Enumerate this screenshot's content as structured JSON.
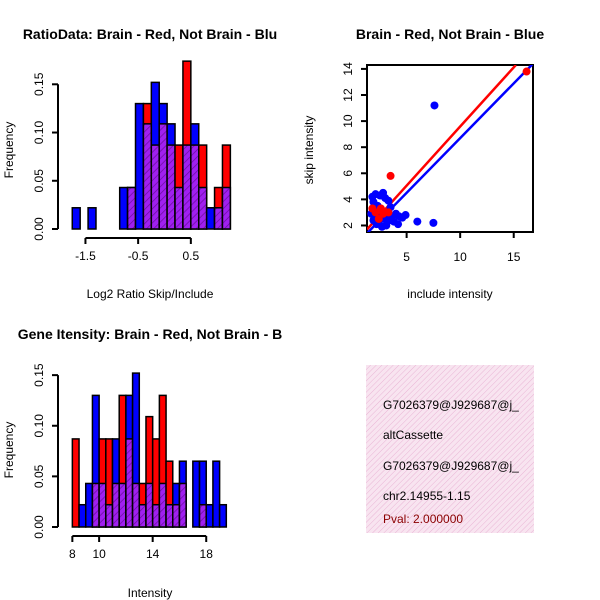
{
  "colors": {
    "red": "#ff0000",
    "blue": "#0000ff",
    "overlap": "#a020f0",
    "info_bg": "#f6dbec",
    "pval": "#8b0000"
  },
  "chart_data": [
    {
      "id": "ratio",
      "type": "bar",
      "title": "RatioData: Brain - Red, Not Brain - Blu",
      "xlabel": "Log2 Ratio Skip/Include",
      "ylabel": "Frequency",
      "xlim": [
        -1.85,
        1.3
      ],
      "ylim": [
        0,
        0.17
      ],
      "xticks": [
        -1.5,
        -0.5,
        0.5
      ],
      "xtick_labels": [
        "-1.5",
        "-0.5",
        "0.5"
      ],
      "yticks": [
        0,
        0.05,
        0.1,
        0.15
      ],
      "ytick_labels": [
        "0.00",
        "0.05",
        "0.10",
        "0.15"
      ],
      "bins": [
        {
          "x0": -1.75,
          "x1": -1.6,
          "blue": 0.022,
          "red": 0.0
        },
        {
          "x0": -1.45,
          "x1": -1.3,
          "blue": 0.022,
          "red": 0.0
        },
        {
          "x0": -0.85,
          "x1": -0.7,
          "blue": 0.043,
          "red": 0.0
        },
        {
          "x0": -0.7,
          "x1": -0.55,
          "blue": 0.043,
          "red": 0.043
        },
        {
          "x0": -0.55,
          "x1": -0.4,
          "blue": 0.13,
          "red": 0.0
        },
        {
          "x0": -0.4,
          "x1": -0.25,
          "blue": 0.109,
          "red": 0.13
        },
        {
          "x0": -0.25,
          "x1": -0.1,
          "blue": 0.152,
          "red": 0.087
        },
        {
          "x0": -0.1,
          "x1": 0.05,
          "blue": 0.13,
          "red": 0.109
        },
        {
          "x0": 0.05,
          "x1": 0.2,
          "blue": 0.109,
          "red": 0.087
        },
        {
          "x0": 0.2,
          "x1": 0.35,
          "blue": 0.043,
          "red": 0.087
        },
        {
          "x0": 0.35,
          "x1": 0.5,
          "blue": 0.087,
          "red": 0.174
        },
        {
          "x0": 0.5,
          "x1": 0.65,
          "blue": 0.109,
          "red": 0.087
        },
        {
          "x0": 0.65,
          "x1": 0.8,
          "blue": 0.043,
          "red": 0.087
        },
        {
          "x0": 0.8,
          "x1": 0.95,
          "blue": 0.022,
          "red": 0.0
        },
        {
          "x0": 0.95,
          "x1": 1.1,
          "blue": 0.022,
          "red": 0.043
        },
        {
          "x0": 1.1,
          "x1": 1.25,
          "blue": 0.043,
          "red": 0.087
        }
      ]
    },
    {
      "id": "scatter",
      "type": "scatter",
      "title": "Brain - Red, Not Brain - Blue",
      "xlabel": "include intensity",
      "ylabel": "skip intensity",
      "xlim": [
        1.3,
        16.8
      ],
      "ylim": [
        1.5,
        14.3
      ],
      "xticks": [
        5,
        10,
        15
      ],
      "xtick_labels": [
        "5",
        "10",
        "15"
      ],
      "yticks": [
        2,
        4,
        6,
        8,
        10,
        12,
        14
      ],
      "ytick_labels": [
        "2",
        "4",
        "6",
        "8",
        "10",
        "12",
        "14"
      ],
      "series": [
        {
          "name": "Not Brain",
          "color": "blue",
          "points": [
            [
              1.8,
              4.2
            ],
            [
              2.1,
              4.4
            ],
            [
              2.5,
              4.3
            ],
            [
              2.8,
              4.5
            ],
            [
              1.9,
              3.8
            ],
            [
              2.3,
              3.5
            ],
            [
              3.0,
              4.1
            ],
            [
              3.3,
              3.9
            ],
            [
              2.2,
              3.2
            ],
            [
              2.6,
              3.0
            ],
            [
              3.5,
              3.4
            ],
            [
              1.7,
              2.9
            ],
            [
              2.0,
              2.6
            ],
            [
              2.4,
              2.3
            ],
            [
              2.9,
              2.5
            ],
            [
              3.2,
              2.8
            ],
            [
              3.6,
              2.6
            ],
            [
              4.0,
              2.9
            ],
            [
              4.3,
              2.7
            ],
            [
              4.6,
              2.6
            ],
            [
              4.9,
              2.8
            ],
            [
              3.8,
              2.3
            ],
            [
              4.2,
              2.1
            ],
            [
              3.1,
              2.0
            ],
            [
              2.7,
              1.9
            ],
            [
              2.2,
              2.1
            ],
            [
              1.9,
              2.4
            ],
            [
              2.5,
              2.7
            ],
            [
              3.4,
              2.4
            ],
            [
              6.0,
              2.3
            ],
            [
              7.5,
              2.2
            ],
            [
              7.6,
              11.2
            ]
          ]
        },
        {
          "name": "Brain",
          "color": "red",
          "points": [
            [
              3.5,
              5.8
            ],
            [
              1.8,
              3.3
            ],
            [
              2.1,
              3.0
            ],
            [
              2.4,
              2.5
            ],
            [
              2.8,
              2.9
            ],
            [
              3.3,
              3.0
            ],
            [
              2.6,
              3.3
            ],
            [
              16.2,
              13.8
            ]
          ]
        }
      ],
      "fit_lines": [
        {
          "name": "Not Brain fit",
          "color": "blue",
          "from": [
            1.3,
            1.4
          ],
          "to": [
            16.8,
            14.4
          ]
        },
        {
          "name": "Brain fit",
          "color": "red",
          "from": [
            1.3,
            1.7
          ],
          "to": [
            15.2,
            14.3
          ]
        }
      ]
    },
    {
      "id": "intensity",
      "type": "bar",
      "title": "Gene Itensity: Brain - Red, Not Brain - B",
      "xlabel": "Intensity",
      "ylabel": "Frequency",
      "xlim": [
        7.6,
        20.0
      ],
      "ylim": [
        0,
        0.16
      ],
      "xticks": [
        8,
        10,
        14,
        18
      ],
      "xtick_labels": [
        "8",
        "10",
        "14",
        "18"
      ],
      "yticks": [
        0,
        0.05,
        0.1,
        0.15
      ],
      "ytick_labels": [
        "0.00",
        "0.05",
        "0.10",
        "0.15"
      ],
      "bins": [
        {
          "x0": 8.0,
          "x1": 8.5,
          "blue": 0.0,
          "red": 0.087
        },
        {
          "x0": 8.5,
          "x1": 9.0,
          "blue": 0.022,
          "red": 0.0
        },
        {
          "x0": 9.0,
          "x1": 9.5,
          "blue": 0.043,
          "red": 0.0
        },
        {
          "x0": 9.5,
          "x1": 10.0,
          "blue": 0.13,
          "red": 0.043
        },
        {
          "x0": 10.0,
          "x1": 10.5,
          "blue": 0.043,
          "red": 0.087
        },
        {
          "x0": 10.5,
          "x1": 11.0,
          "blue": 0.022,
          "red": 0.087
        },
        {
          "x0": 11.0,
          "x1": 11.5,
          "blue": 0.087,
          "red": 0.043
        },
        {
          "x0": 11.5,
          "x1": 12.0,
          "blue": 0.043,
          "red": 0.13
        },
        {
          "x0": 12.0,
          "x1": 12.5,
          "blue": 0.13,
          "red": 0.087
        },
        {
          "x0": 12.5,
          "x1": 13.0,
          "blue": 0.152,
          "red": 0.043
        },
        {
          "x0": 13.0,
          "x1": 13.5,
          "blue": 0.022,
          "red": 0.043
        },
        {
          "x0": 13.5,
          "x1": 14.0,
          "blue": 0.043,
          "red": 0.109
        },
        {
          "x0": 14.0,
          "x1": 14.5,
          "blue": 0.022,
          "red": 0.087
        },
        {
          "x0": 14.5,
          "x1": 15.0,
          "blue": 0.043,
          "red": 0.13
        },
        {
          "x0": 15.0,
          "x1": 15.5,
          "blue": 0.022,
          "red": 0.065
        },
        {
          "x0": 15.5,
          "x1": 16.0,
          "blue": 0.043,
          "red": 0.022
        },
        {
          "x0": 16.0,
          "x1": 16.5,
          "blue": 0.065,
          "red": 0.043
        },
        {
          "x0": 16.5,
          "x1": 17.0,
          "blue": 0.0,
          "red": 0.0
        },
        {
          "x0": 17.0,
          "x1": 17.5,
          "blue": 0.065,
          "red": 0.0
        },
        {
          "x0": 17.5,
          "x1": 18.0,
          "blue": 0.065,
          "red": 0.022
        },
        {
          "x0": 18.0,
          "x1": 18.5,
          "blue": 0.022,
          "red": 0.0
        },
        {
          "x0": 18.5,
          "x1": 19.0,
          "blue": 0.065,
          "red": 0.0
        },
        {
          "x0": 19.0,
          "x1": 19.5,
          "blue": 0.022,
          "red": 0.0
        }
      ]
    }
  ],
  "info_panel": {
    "lines": [
      "G7026379@J929687@j_",
      "altCassette",
      "G7026379@J929687@j_",
      "chr2.14955-1.15"
    ],
    "pval": "Pval: 2.000000"
  }
}
